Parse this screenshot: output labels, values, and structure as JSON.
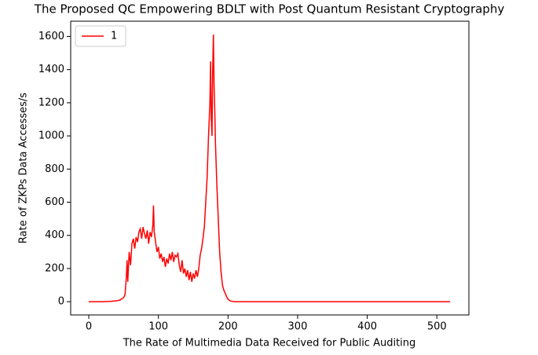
{
  "chart_data": {
    "type": "line",
    "title": "The Proposed QC Empowering BDLT with Post Quantum Resistant Cryptography",
    "xlabel": "The Rate of Multimedia Data Received for Public Auditing",
    "ylabel": "Rate of ZKPs Data Accesses/s",
    "x": [
      0,
      10,
      20,
      30,
      40,
      45,
      50,
      52,
      54,
      55,
      56,
      58,
      60,
      62,
      64,
      66,
      68,
      70,
      72,
      74,
      76,
      78,
      80,
      82,
      84,
      86,
      88,
      90,
      92,
      93,
      94,
      96,
      98,
      100,
      102,
      104,
      106,
      108,
      110,
      112,
      114,
      116,
      118,
      120,
      122,
      124,
      126,
      128,
      130,
      132,
      134,
      136,
      138,
      140,
      142,
      144,
      146,
      148,
      150,
      152,
      154,
      156,
      158,
      160,
      162,
      164,
      166,
      168,
      170,
      172,
      174,
      175,
      176,
      177,
      178,
      179,
      180,
      181,
      182,
      184,
      186,
      188,
      190,
      192,
      194,
      196,
      198,
      200,
      203,
      206,
      210,
      215,
      230,
      300,
      400,
      519
    ],
    "series": [
      {
        "name": "1",
        "color": "#ff0000",
        "values": [
          0,
          0,
          0,
          2,
          5,
          10,
          25,
          40,
          150,
          250,
          120,
          300,
          220,
          350,
          380,
          320,
          390,
          360,
          420,
          440,
          380,
          450,
          410,
          380,
          430,
          350,
          420,
          390,
          460,
          580,
          420,
          360,
          300,
          330,
          260,
          290,
          240,
          270,
          210,
          260,
          230,
          290,
          250,
          300,
          240,
          280,
          270,
          290,
          220,
          180,
          250,
          170,
          200,
          150,
          190,
          130,
          180,
          120,
          170,
          140,
          190,
          150,
          200,
          280,
          320,
          380,
          450,
          600,
          750,
          1000,
          1200,
          1450,
          1100,
          1000,
          1400,
          1612,
          1300,
          1150,
          950,
          700,
          500,
          300,
          180,
          100,
          70,
          50,
          30,
          15,
          5,
          2,
          0,
          0,
          0,
          0,
          0,
          0
        ]
      }
    ],
    "xlim": [
      -26,
      546
    ],
    "ylim": [
      -80,
      1692
    ],
    "xticks": [
      0,
      100,
      200,
      300,
      400,
      500
    ],
    "yticks": [
      0,
      200,
      400,
      600,
      800,
      1000,
      1200,
      1400,
      1600
    ],
    "legend": "upper left"
  }
}
